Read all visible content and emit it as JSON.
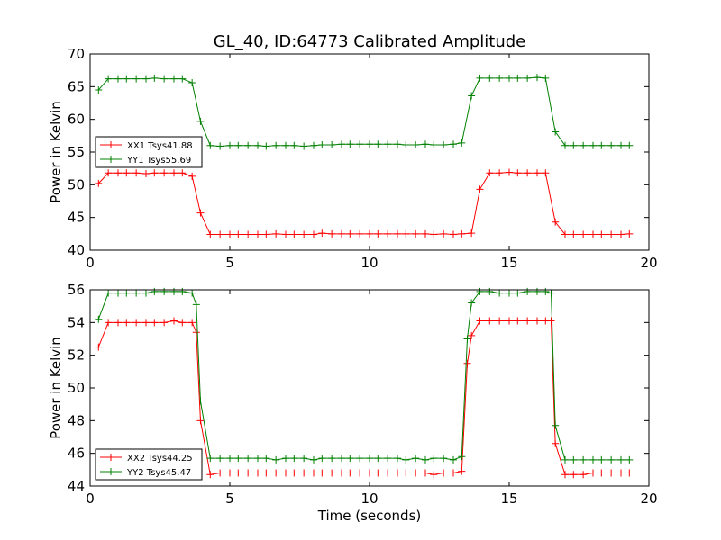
{
  "chart_data": [
    {
      "type": "line",
      "title": "GL_40, ID:64773 Calibrated Amplitude",
      "xlabel": "",
      "ylabel": "Power in Kelvin",
      "xlim": [
        0,
        20
      ],
      "ylim": [
        40,
        70
      ],
      "xticks": [
        0,
        5,
        10,
        15,
        20
      ],
      "yticks": [
        40,
        45,
        50,
        55,
        60,
        65,
        70
      ],
      "grid": false,
      "legend_position": "center-left",
      "x": [
        0.3,
        0.65,
        1.0,
        1.3,
        1.65,
        2.0,
        2.3,
        2.65,
        3.0,
        3.3,
        3.65,
        3.95,
        4.3,
        4.65,
        5.0,
        5.3,
        5.65,
        6.0,
        6.3,
        6.65,
        7.0,
        7.3,
        7.65,
        8.0,
        8.3,
        8.65,
        9.0,
        9.3,
        9.65,
        10.0,
        10.3,
        10.65,
        11.0,
        11.3,
        11.65,
        12.0,
        12.3,
        12.65,
        13.0,
        13.3,
        13.65,
        13.95,
        14.3,
        14.65,
        15.0,
        15.3,
        15.65,
        16.0,
        16.3,
        16.65,
        17.0,
        17.3,
        17.65,
        18.0,
        18.3,
        18.65,
        19.0,
        19.3
      ],
      "series": [
        {
          "name": "XX1 Tsys41.88",
          "color": "#ff0000",
          "values": [
            50.2,
            51.8,
            51.8,
            51.8,
            51.8,
            51.7,
            51.8,
            51.8,
            51.8,
            51.8,
            51.3,
            45.7,
            42.4,
            42.4,
            42.4,
            42.4,
            42.4,
            42.4,
            42.4,
            42.5,
            42.4,
            42.4,
            42.4,
            42.4,
            42.6,
            42.5,
            42.5,
            42.5,
            42.5,
            42.5,
            42.5,
            42.5,
            42.5,
            42.5,
            42.5,
            42.5,
            42.4,
            42.5,
            42.4,
            42.5,
            42.6,
            49.3,
            51.8,
            51.8,
            51.9,
            51.8,
            51.8,
            51.8,
            51.8,
            44.3,
            42.4,
            42.4,
            42.4,
            42.4,
            42.4,
            42.4,
            42.4,
            42.5
          ]
        },
        {
          "name": "YY1 Tsys55.69",
          "color": "#008000",
          "values": [
            64.5,
            66.2,
            66.2,
            66.2,
            66.2,
            66.2,
            66.3,
            66.2,
            66.2,
            66.2,
            65.6,
            59.7,
            56.0,
            55.9,
            56.0,
            56.0,
            56.0,
            56.0,
            55.9,
            56.0,
            56.0,
            56.0,
            55.9,
            56.0,
            56.1,
            56.1,
            56.2,
            56.2,
            56.2,
            56.2,
            56.2,
            56.2,
            56.2,
            56.1,
            56.1,
            56.2,
            56.1,
            56.1,
            56.2,
            56.4,
            63.6,
            66.3,
            66.3,
            66.3,
            66.3,
            66.3,
            66.3,
            66.4,
            66.3,
            58.1,
            56.0,
            56.0,
            56.0,
            56.0,
            56.0,
            56.0,
            56.0,
            56.0
          ]
        }
      ]
    },
    {
      "type": "line",
      "title": "",
      "xlabel": "Time (seconds)",
      "ylabel": "Power in Kelvin",
      "xlim": [
        0,
        20
      ],
      "ylim": [
        44,
        56
      ],
      "xticks": [
        0,
        5,
        10,
        15,
        20
      ],
      "yticks": [
        44,
        46,
        48,
        50,
        52,
        54,
        56
      ],
      "grid": false,
      "legend_position": "lower-left",
      "x": [
        0.3,
        0.65,
        1.0,
        1.3,
        1.65,
        2.0,
        2.3,
        2.65,
        3.0,
        3.3,
        3.65,
        3.8,
        3.95,
        4.3,
        4.65,
        5.0,
        5.3,
        5.65,
        6.0,
        6.3,
        6.65,
        7.0,
        7.3,
        7.65,
        8.0,
        8.3,
        8.65,
        9.0,
        9.3,
        9.65,
        10.0,
        10.3,
        10.65,
        11.0,
        11.3,
        11.65,
        12.0,
        12.3,
        12.65,
        13.0,
        13.3,
        13.5,
        13.65,
        13.95,
        14.3,
        14.65,
        15.0,
        15.3,
        15.65,
        16.0,
        16.3,
        16.5,
        16.65,
        17.0,
        17.3,
        17.65,
        18.0,
        18.3,
        18.65,
        19.0,
        19.3
      ],
      "series": [
        {
          "name": "XX2 Tsys44.25",
          "color": "#ff0000",
          "values": [
            52.5,
            54.0,
            54.0,
            54.0,
            54.0,
            54.0,
            54.0,
            54.0,
            54.1,
            54.0,
            54.0,
            53.4,
            48.0,
            44.7,
            44.8,
            44.8,
            44.8,
            44.8,
            44.8,
            44.8,
            44.8,
            44.8,
            44.8,
            44.8,
            44.8,
            44.8,
            44.8,
            44.8,
            44.8,
            44.8,
            44.8,
            44.8,
            44.8,
            44.8,
            44.8,
            44.8,
            44.8,
            44.7,
            44.8,
            44.8,
            44.9,
            51.5,
            53.2,
            54.1,
            54.1,
            54.1,
            54.1,
            54.1,
            54.1,
            54.1,
            54.1,
            54.1,
            46.6,
            44.7,
            44.7,
            44.7,
            44.8,
            44.8,
            44.8,
            44.8,
            44.8
          ]
        },
        {
          "name": "YY2 Tsys45.47",
          "color": "#008000",
          "values": [
            54.2,
            55.8,
            55.8,
            55.8,
            55.8,
            55.8,
            55.9,
            55.9,
            55.9,
            55.9,
            55.8,
            55.1,
            49.2,
            45.7,
            45.7,
            45.7,
            45.7,
            45.7,
            45.7,
            45.7,
            45.6,
            45.7,
            45.7,
            45.7,
            45.6,
            45.7,
            45.7,
            45.7,
            45.7,
            45.7,
            45.7,
            45.7,
            45.7,
            45.7,
            45.6,
            45.7,
            45.6,
            45.7,
            45.7,
            45.6,
            45.8,
            53.0,
            55.2,
            55.9,
            55.9,
            55.8,
            55.8,
            55.8,
            55.9,
            55.9,
            55.9,
            55.8,
            47.7,
            45.6,
            45.6,
            45.6,
            45.6,
            45.6,
            45.6,
            45.6,
            45.6
          ]
        }
      ]
    }
  ]
}
